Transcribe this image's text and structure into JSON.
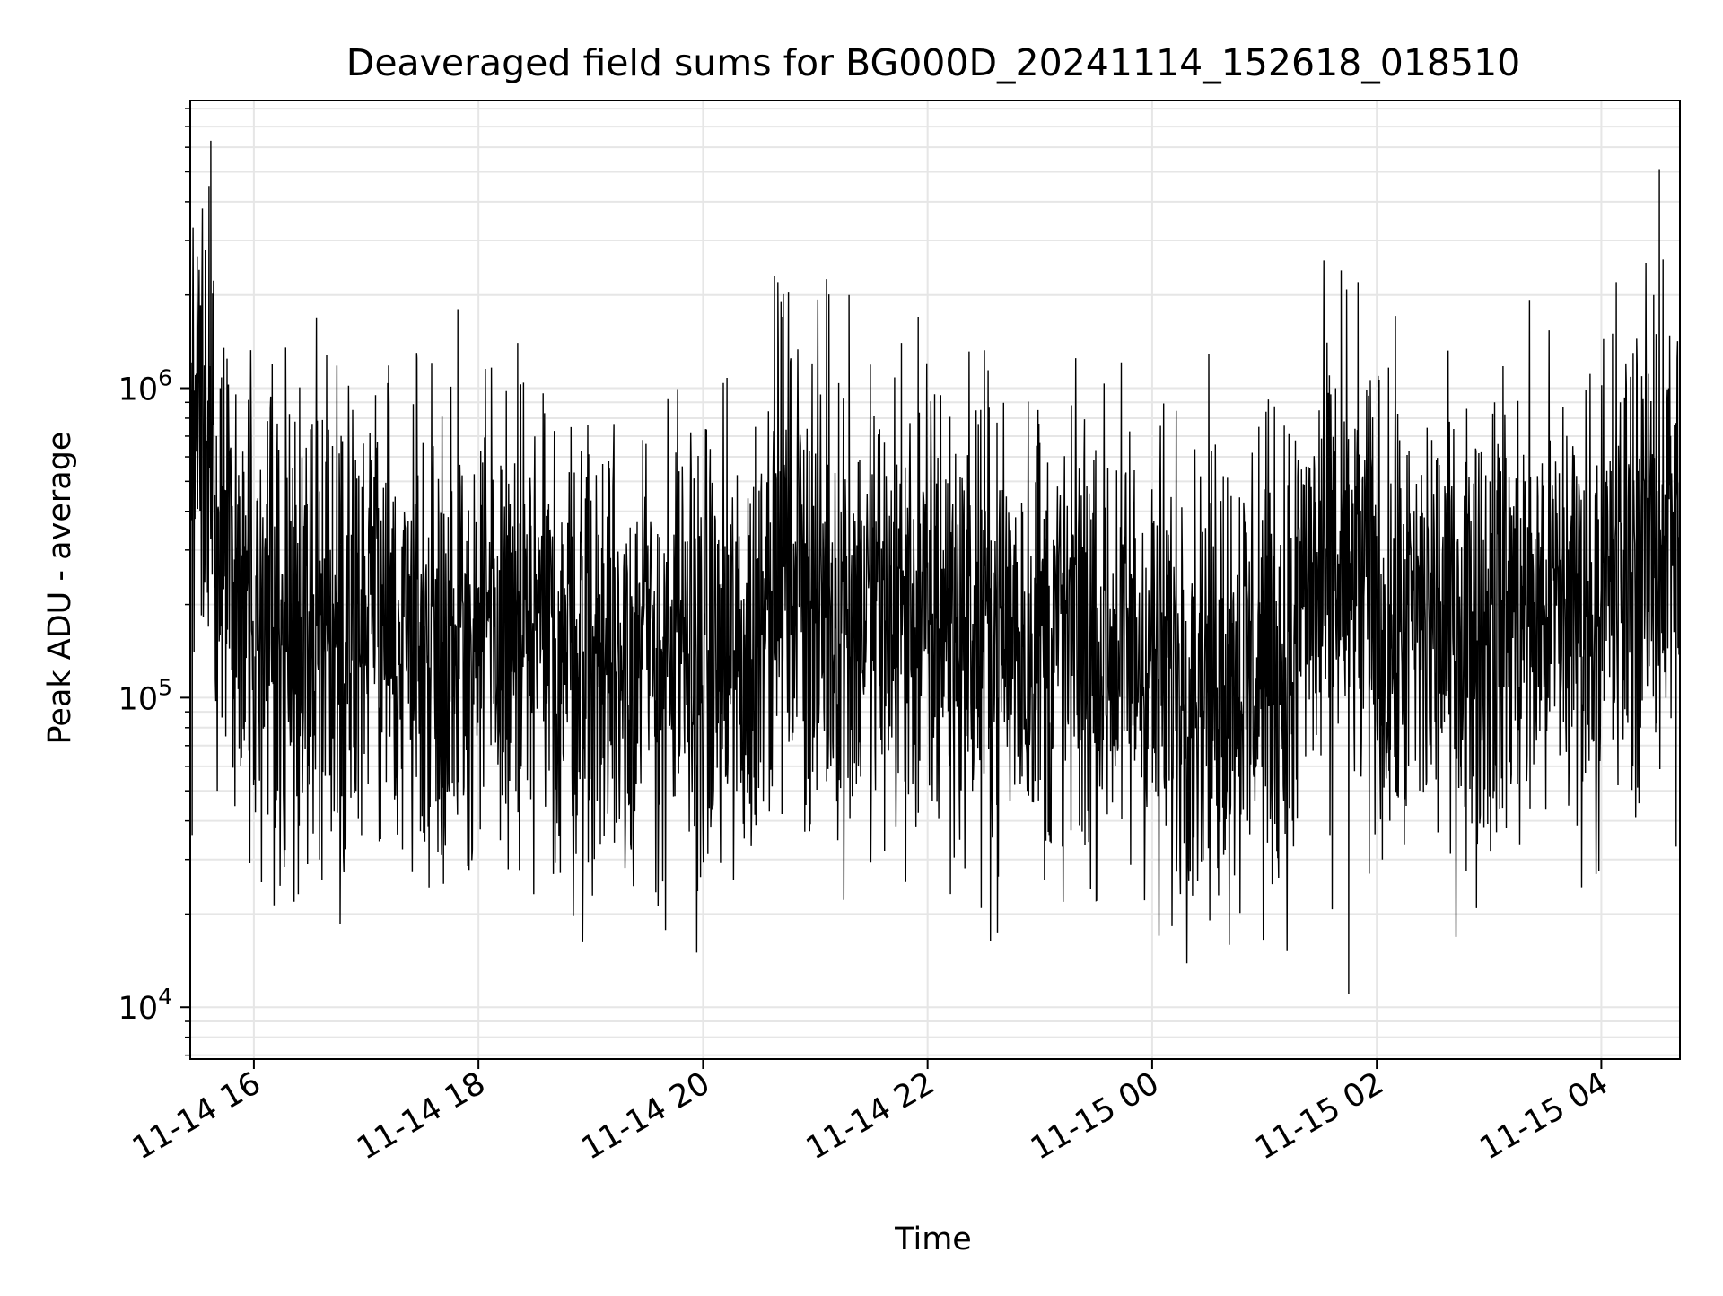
{
  "chart_data": {
    "type": "line",
    "title": "Deaveraged field sums for BG000D_20241114_152618_018510",
    "xlabel": "Time",
    "ylabel": "Peak ADU - average",
    "yscale": "log",
    "grid": true,
    "xlim": [
      "2024-11-14 15:26",
      "2024-11-15 04:42"
    ],
    "ylim": [
      6800,
      8500000
    ],
    "x_ticks": [
      "11-14 16",
      "11-14 18",
      "11-14 20",
      "11-14 22",
      "11-15 00",
      "11-15 02",
      "11-15 04"
    ],
    "y_ticks": [
      {
        "value": 10000,
        "label": "10^4",
        "base": "10",
        "exp": "4"
      },
      {
        "value": 100000,
        "label": "10^5",
        "base": "10",
        "exp": "5"
      },
      {
        "value": 1000000,
        "label": "10^6",
        "base": "10",
        "exp": "6"
      }
    ],
    "line_color": "#000000",
    "series": [
      {
        "sampled": true,
        "points": [
          [
            "2024-11-14 15:27",
            36000
          ],
          [
            "2024-11-14 15:28",
            140000
          ],
          [
            "2024-11-14 15:30",
            550000
          ],
          [
            "2024-11-14 15:32",
            1200000
          ],
          [
            "2024-11-14 15:34",
            2800000
          ],
          [
            "2024-11-14 15:36",
            4500000
          ],
          [
            "2024-11-14 15:37",
            6300000
          ],
          [
            "2024-11-14 15:38",
            900000
          ],
          [
            "2024-11-14 15:40",
            700000
          ],
          [
            "2024-11-14 15:42",
            1000000
          ],
          [
            "2024-11-14 15:43",
            280000
          ],
          [
            "2024-11-14 15:44",
            1350000
          ],
          [
            "2024-11-14 15:45",
            75000
          ],
          [
            "2024-11-14 15:48",
            350000
          ],
          [
            "2024-11-14 15:53",
            60000
          ],
          [
            "2024-11-14 16:03",
            54000
          ],
          [
            "2024-11-14 16:22",
            780000
          ],
          [
            "2024-11-14 16:29",
            60000
          ],
          [
            "2024-11-14 16:35",
            30000
          ],
          [
            "2024-11-14 16:42",
            650000
          ],
          [
            "2024-11-14 16:47",
            48000
          ],
          [
            "2024-11-14 17:05",
            950000
          ],
          [
            "2024-11-14 17:16",
            55000
          ],
          [
            "2024-11-14 17:27",
            1300000
          ],
          [
            "2024-11-14 17:29",
            37000
          ],
          [
            "2024-11-14 17:35",
            1200000
          ],
          [
            "2024-11-14 17:47",
            48000
          ],
          [
            "2024-11-14 17:49",
            1800000
          ],
          [
            "2024-11-14 18:20",
            50000
          ],
          [
            "2024-11-14 18:21",
            1400000
          ],
          [
            "2024-11-14 18:28",
            47000
          ],
          [
            "2024-11-14 18:50",
            60000
          ],
          [
            "2024-11-14 19:10",
            550000
          ],
          [
            "2024-11-14 19:45",
            48000
          ],
          [
            "2024-11-14 20:18",
            50000
          ],
          [
            "2024-11-14 20:28",
            750000
          ],
          [
            "2024-11-14 20:40",
            2200000
          ],
          [
            "2024-11-14 20:42",
            1700000
          ],
          [
            "2024-11-14 20:47",
            160000
          ],
          [
            "2024-11-14 20:55",
            45000
          ],
          [
            "2024-11-14 20:57",
            37000
          ],
          [
            "2024-11-14 21:06",
            2250000
          ],
          [
            "2024-11-14 21:12",
            55000
          ],
          [
            "2024-11-14 21:18",
            2000000
          ],
          [
            "2024-11-14 21:23",
            60000
          ],
          [
            "2024-11-14 21:37",
            32000
          ],
          [
            "2024-11-14 21:46",
            1400000
          ],
          [
            "2024-11-14 21:55",
            1700000
          ],
          [
            "2024-11-14 22:01",
            52000
          ],
          [
            "2024-11-14 22:07",
            950000
          ],
          [
            "2024-11-14 22:24",
            50000
          ],
          [
            "2024-11-14 22:37",
            45000
          ],
          [
            "2024-11-14 22:59",
            850000
          ],
          [
            "2024-11-14 23:05",
            36000
          ],
          [
            "2024-11-14 23:12",
            33000
          ],
          [
            "2024-11-14 23:21",
            550000
          ],
          [
            "2024-11-14 23:36",
            42000
          ],
          [
            "2024-11-15 00:03",
            48000
          ],
          [
            "2024-11-15 00:20",
            55000
          ],
          [
            "2024-11-15 00:38",
            520000
          ],
          [
            "2024-11-15 00:51",
            40000
          ],
          [
            "2024-11-15 00:57",
            750000
          ],
          [
            "2024-11-15 01:15",
            40000
          ],
          [
            "2024-11-15 01:35",
            36000
          ],
          [
            "2024-11-15 01:38",
            1000000
          ],
          [
            "2024-11-15 01:41",
            2400000
          ],
          [
            "2024-11-15 01:45",
            11000
          ],
          [
            "2024-11-15 01:50",
            2200000
          ],
          [
            "2024-11-15 01:56",
            27000
          ],
          [
            "2024-11-15 02:03",
            30000
          ],
          [
            "2024-11-15 02:07",
            40000
          ],
          [
            "2024-11-15 02:15",
            47000
          ],
          [
            "2024-11-15 02:33",
            60000
          ],
          [
            "2024-11-15 02:45",
            80000
          ],
          [
            "2024-11-15 03:03",
            900000
          ],
          [
            "2024-11-15 03:20",
            90000
          ],
          [
            "2024-11-15 03:43",
            320000
          ],
          [
            "2024-11-15 03:57",
            60000
          ],
          [
            "2024-11-15 04:03",
            300000
          ],
          [
            "2024-11-15 04:06",
            1500000
          ],
          [
            "2024-11-15 04:08",
            2200000
          ],
          [
            "2024-11-15 04:12",
            300000
          ],
          [
            "2024-11-15 04:17",
            1300000
          ],
          [
            "2024-11-15 04:21",
            80000
          ],
          [
            "2024-11-15 04:28",
            2000000
          ],
          [
            "2024-11-15 04:31",
            5100000
          ],
          [
            "2024-11-15 04:33",
            2600000
          ],
          [
            "2024-11-15 04:36",
            1000000
          ],
          [
            "2024-11-15 04:40",
            33000
          ]
        ]
      }
    ]
  }
}
